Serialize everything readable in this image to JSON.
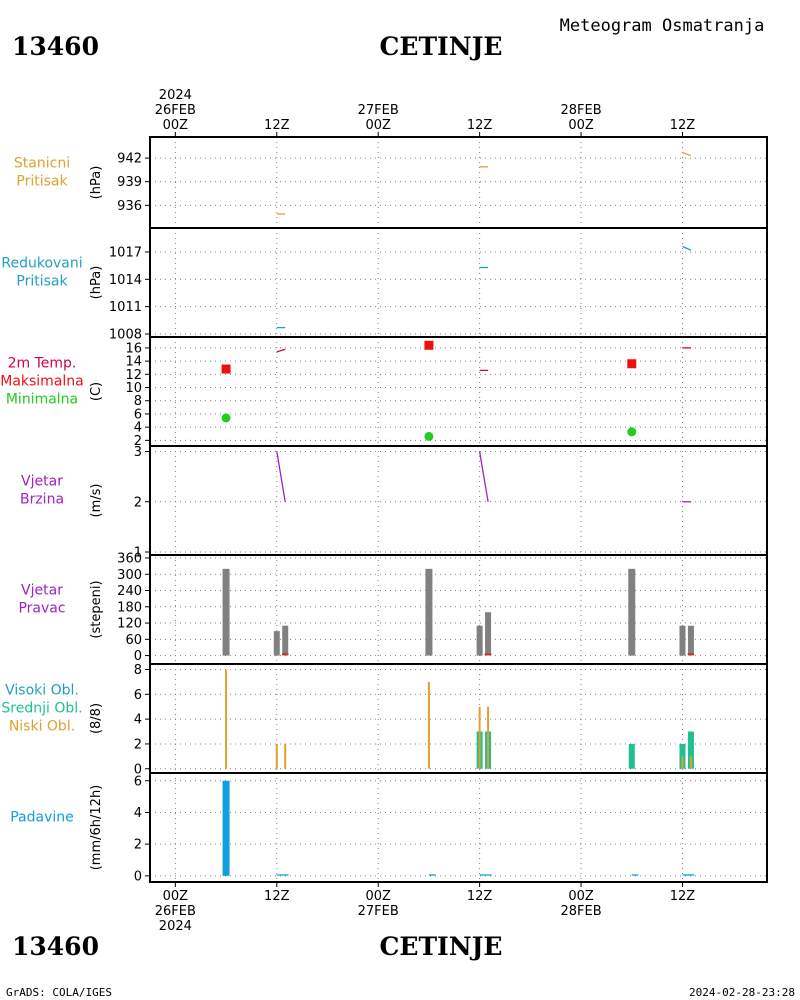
{
  "header": {
    "station_id": "13460",
    "station_name": "CETINJE",
    "meteogram_title": "Meteogram Osmatranja",
    "footer_left": "GrADS: COLA/IGES",
    "footer_right": "2024-02-28-23:28"
  },
  "colors": {
    "pressure_station": "#e0a030",
    "pressure_reduced": "#20a0c0",
    "temp_label": "#d00050",
    "temp_max": "#ee1010",
    "temp_min": "#22cc22",
    "wind": "#a020c0",
    "wind_dir_bar": "#808080",
    "wind_dir_small": "#ee1010",
    "cloud_high": "#20a0c0",
    "cloud_mid": "#20c090",
    "cloud_low": "#e0a030",
    "precip": "#10a0e0"
  },
  "chart_data": {
    "type": "meteogram",
    "time_axis": {
      "top_labels": [
        {
          "x": 0,
          "lines": [
            "2024",
            "26FEB",
            "00Z"
          ]
        },
        {
          "x": 12,
          "lines": [
            "12Z"
          ]
        },
        {
          "x": 24,
          "lines": [
            "27FEB",
            "00Z"
          ]
        },
        {
          "x": 36,
          "lines": [
            "12Z"
          ]
        },
        {
          "x": 48,
          "lines": [
            "28FEB",
            "00Z"
          ]
        },
        {
          "x": 60,
          "lines": [
            "12Z"
          ]
        }
      ],
      "bottom_labels": [
        {
          "x": 0,
          "lines": [
            "00Z",
            "26FEB",
            "2024"
          ]
        },
        {
          "x": 12,
          "lines": [
            "12Z"
          ]
        },
        {
          "x": 24,
          "lines": [
            "00Z",
            "27FEB"
          ]
        },
        {
          "x": 36,
          "lines": [
            "12Z"
          ]
        },
        {
          "x": 48,
          "lines": [
            "00Z",
            "28FEB"
          ]
        },
        {
          "x": 60,
          "lines": [
            "12Z"
          ]
        }
      ],
      "gridlines_hours": [
        0,
        12,
        24,
        36,
        48,
        60
      ],
      "range_hours": [
        -3,
        70
      ]
    },
    "panels": [
      {
        "id": "station_pressure",
        "labels": [
          "Stanicni",
          "Pritisak"
        ],
        "label_colors": [
          "pressure_station",
          "pressure_station"
        ],
        "unit": "(hPa)",
        "ylim": [
          933.5,
          944.3
        ],
        "ticks": [
          936,
          939,
          942
        ],
        "series": [
          {
            "kind": "segment",
            "color": "pressure_station",
            "points": [
              [
                12,
                934.9
              ],
              [
                13,
                934.9
              ]
            ]
          },
          {
            "kind": "segment",
            "color": "pressure_station",
            "points": [
              [
                36,
                940.9
              ],
              [
                37,
                940.9
              ]
            ]
          },
          {
            "kind": "segment",
            "color": "pressure_station",
            "points": [
              [
                60,
                942.7
              ],
              [
                61,
                942.3
              ]
            ]
          }
        ]
      },
      {
        "id": "reduced_pressure",
        "labels": [
          "Redukovani",
          "Pritisak"
        ],
        "label_colors": [
          "pressure_reduced",
          "pressure_reduced"
        ],
        "unit": "(hPa)",
        "ylim": [
          1008,
          1019.3
        ],
        "ticks": [
          1008,
          1011,
          1014,
          1017
        ],
        "series": [
          {
            "kind": "segment",
            "color": "pressure_reduced",
            "points": [
              [
                12,
                1008.7
              ],
              [
                13,
                1008.7
              ]
            ]
          },
          {
            "kind": "segment",
            "color": "pressure_reduced",
            "points": [
              [
                36,
                1015.3
              ],
              [
                37,
                1015.3
              ]
            ]
          },
          {
            "kind": "segment",
            "color": "pressure_reduced",
            "points": [
              [
                60,
                1017.6
              ],
              [
                61,
                1017.2
              ]
            ]
          }
        ]
      },
      {
        "id": "temperature",
        "labels": [
          "2m Temp.",
          "Maksimalna",
          "Minimalna"
        ],
        "label_colors": [
          "temp_label",
          "temp_max",
          "temp_min"
        ],
        "unit": "(C)",
        "ylim": [
          1.6,
          17.2
        ],
        "ticks": [
          2,
          4,
          6,
          8,
          10,
          12,
          14,
          16
        ],
        "series": [
          {
            "kind": "segment",
            "color": "temp_label",
            "points": [
              [
                12,
                15.4
              ],
              [
                13,
                15.8
              ]
            ]
          },
          {
            "kind": "segment",
            "color": "temp_label",
            "points": [
              [
                36,
                12.6
              ],
              [
                37,
                12.6
              ]
            ]
          },
          {
            "kind": "segment",
            "color": "temp_label",
            "points": [
              [
                60,
                16.0
              ],
              [
                61,
                16.0
              ]
            ]
          },
          {
            "kind": "square",
            "color": "temp_max",
            "points": [
              [
                6,
                12.8
              ],
              [
                30,
                16.4
              ],
              [
                54,
                13.6
              ]
            ]
          },
          {
            "kind": "dot",
            "color": "temp_min",
            "points": [
              [
                6,
                5.4
              ],
              [
                30,
                2.6
              ],
              [
                54,
                3.3
              ]
            ]
          }
        ]
      },
      {
        "id": "wind_speed",
        "labels": [
          "Vjetar",
          "Brzina"
        ],
        "label_colors": [
          "wind",
          "wind"
        ],
        "unit": "(m/s)",
        "ylim": [
          1,
          3.05
        ],
        "ticks": [
          1,
          2,
          3
        ],
        "series": [
          {
            "kind": "segment",
            "color": "wind",
            "points": [
              [
                12,
                3
              ],
              [
                13,
                2
              ]
            ]
          },
          {
            "kind": "segment",
            "color": "wind",
            "points": [
              [
                36,
                3
              ],
              [
                37,
                2
              ]
            ]
          },
          {
            "kind": "segment",
            "color": "wind",
            "points": [
              [
                60,
                2
              ],
              [
                61,
                2
              ]
            ]
          }
        ]
      },
      {
        "id": "wind_direction",
        "labels": [
          "Vjetar",
          "Pravac"
        ],
        "label_colors": [
          "wind",
          "wind"
        ],
        "unit": "(stepeni)",
        "ylim": [
          -20,
          360
        ],
        "ticks": [
          0,
          60,
          120,
          180,
          240,
          300,
          360
        ],
        "series": [
          {
            "kind": "bar",
            "color": "wind_dir_bar",
            "width": 7,
            "points": [
              [
                6,
                320
              ],
              [
                30,
                320
              ],
              [
                54,
                320
              ]
            ]
          },
          {
            "kind": "bar",
            "color": "wind_dir_bar",
            "width": 6,
            "points": [
              [
                12,
                90
              ],
              [
                13,
                110
              ],
              [
                36,
                110
              ],
              [
                37,
                160
              ],
              [
                60,
                110
              ],
              [
                61,
                110
              ]
            ]
          },
          {
            "kind": "segment",
            "color": "wind_dir_small",
            "points": [
              [
                12.6,
                5
              ],
              [
                13.4,
                5
              ]
            ]
          },
          {
            "kind": "segment",
            "color": "wind_dir_small",
            "points": [
              [
                36.6,
                5
              ],
              [
                37.4,
                5
              ]
            ]
          },
          {
            "kind": "segment",
            "color": "wind_dir_small",
            "points": [
              [
                60.6,
                5
              ],
              [
                61.4,
                5
              ]
            ]
          }
        ]
      },
      {
        "id": "clouds",
        "labels": [
          "Visoki Obl.",
          "Srednji Obl.",
          "Niski Obl."
        ],
        "label_colors": [
          "cloud_high",
          "cloud_mid",
          "cloud_low"
        ],
        "unit": "(8/8)",
        "ylim": [
          -0.1,
          8.2
        ],
        "ticks": [
          0,
          2,
          4,
          6,
          8
        ],
        "series": [
          {
            "kind": "bar",
            "color": "cloud_mid",
            "width": 6,
            "points": [
              [
                36,
                3
              ],
              [
                37,
                3
              ],
              [
                54,
                2
              ],
              [
                60,
                2
              ],
              [
                61,
                3
              ]
            ]
          },
          {
            "kind": "bar",
            "color": "cloud_low",
            "width": 2,
            "points": [
              [
                6,
                8
              ],
              [
                12,
                2
              ],
              [
                13,
                2
              ],
              [
                30,
                7
              ],
              [
                36,
                5
              ],
              [
                37,
                5
              ],
              [
                60,
                1
              ],
              [
                61,
                1
              ]
            ]
          }
        ]
      },
      {
        "id": "precipitation",
        "labels": [
          "Padavine"
        ],
        "label_colors": [
          "precip"
        ],
        "unit": "(mm/6h/12h)",
        "ylim": [
          -0.2,
          6.3
        ],
        "ticks": [
          0,
          2,
          4,
          6
        ],
        "series": [
          {
            "kind": "bar",
            "color": "precip",
            "width": 7,
            "points": [
              [
                6,
                6
              ]
            ]
          },
          {
            "kind": "segment",
            "color": "precip",
            "points": [
              [
                12,
                0.05
              ],
              [
                13.4,
                0.05
              ]
            ]
          },
          {
            "kind": "segment",
            "color": "precip",
            "points": [
              [
                30,
                0.05
              ],
              [
                30.8,
                0.05
              ]
            ]
          },
          {
            "kind": "segment",
            "color": "precip",
            "points": [
              [
                36,
                0.05
              ],
              [
                37.4,
                0.05
              ]
            ]
          },
          {
            "kind": "segment",
            "color": "precip",
            "points": [
              [
                54,
                0.05
              ],
              [
                54.8,
                0.05
              ]
            ]
          },
          {
            "kind": "segment",
            "color": "precip",
            "points": [
              [
                60,
                0.05
              ],
              [
                61.4,
                0.05
              ]
            ]
          }
        ]
      }
    ]
  }
}
